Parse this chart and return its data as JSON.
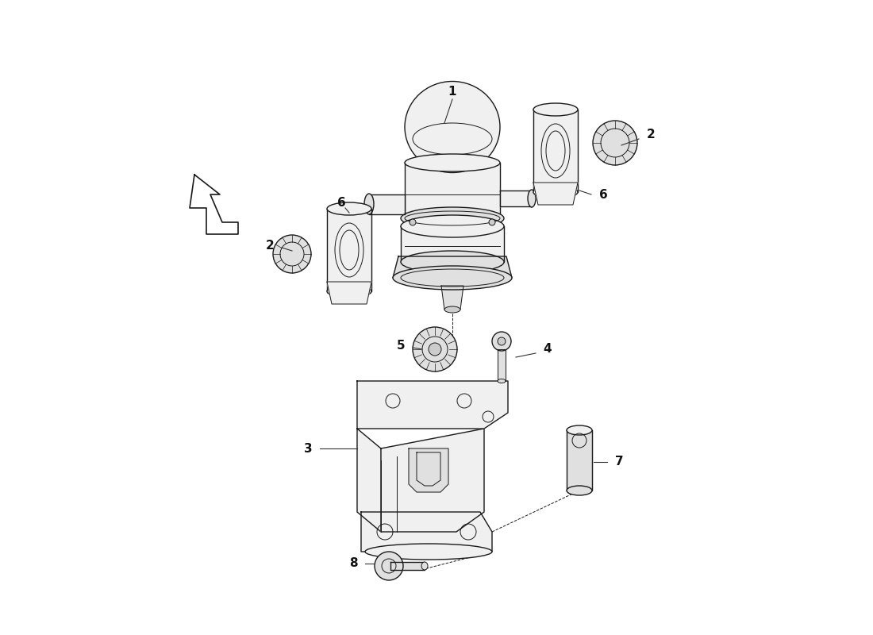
{
  "background_color": "#ffffff",
  "line_color": "#1a1a1a",
  "label_color": "#111111",
  "figsize": [
    11.0,
    8.0
  ],
  "dpi": 100,
  "lw_main": 1.0,
  "lw_detail": 0.7,
  "fill_light": "#f0f0f0",
  "fill_mid": "#e0e0e0",
  "fill_dark": "#cccccc"
}
